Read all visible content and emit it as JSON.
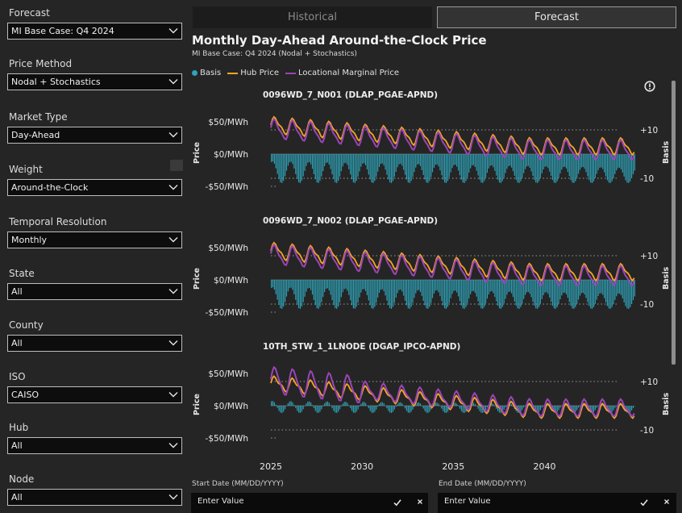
{
  "filters": [
    {
      "label": "Forecast",
      "value": "MI Base Case: Q4 2024"
    },
    {
      "label": "Price Method",
      "value": "Nodal + Stochastics"
    },
    {
      "label": "Market Type",
      "value": "Day-Ahead"
    },
    {
      "label": "Weight",
      "value": "Around-the-Clock"
    },
    {
      "label": "Temporal Resolution",
      "value": "Monthly"
    },
    {
      "label": "State",
      "value": "All"
    },
    {
      "label": "County",
      "value": "All"
    },
    {
      "label": "ISO",
      "value": "CAISO"
    },
    {
      "label": "Hub",
      "value": "All"
    },
    {
      "label": "Node",
      "value": "All"
    }
  ],
  "tabs": {
    "historical": "Historical",
    "forecast": "Forecast",
    "active": "forecast"
  },
  "chart": {
    "title": "Monthly Day-Ahead Around-the-Clock Price",
    "subtitle": "MI Base Case: Q4 2024 (Nodal + Stochastics)",
    "legend": {
      "basis": "Basis",
      "hub": "Hub Price",
      "lmp": "Locational Marginal Price"
    }
  },
  "colors": {
    "basis": "#2fa3b8",
    "hub": "#f5a623",
    "lmp": "#9b45b8"
  },
  "chart_data": {
    "type": "line",
    "left_axis": {
      "label": "Price",
      "ticks": [
        "$50/MWh",
        "$0/MWh",
        "-$50/MWh"
      ]
    },
    "right_axis": {
      "label": "Basis",
      "ticks": [
        "+10",
        "-10"
      ]
    },
    "x_ticks": [
      "2025",
      "2030",
      "2035",
      "2040"
    ],
    "x_range": [
      2025,
      2044
    ],
    "panels": [
      {
        "title": "0096WD_7_N001 (DLAP_PGAE-APND)",
        "hub_level": [
          45,
          12
        ],
        "lmp_offset": -6,
        "basis_range": [
          -12,
          -3
        ],
        "early_spike": false
      },
      {
        "title": "0096WD_7_N002 (DLAP_PGAE-APND)",
        "hub_level": [
          45,
          12
        ],
        "lmp_offset": -6,
        "basis_range": [
          -12,
          -3
        ],
        "early_spike": false
      },
      {
        "title": "10TH_STW_1_1LNODE (DGAP_IPCO-APND)",
        "hub_level": [
          35,
          -8
        ],
        "lmp_offset": 4,
        "basis_range": [
          -3,
          2
        ],
        "early_spike": true
      }
    ]
  },
  "date_filters": {
    "start_label": "Start Date (MM/DD/YYYY)",
    "end_label": "End Date (MM/DD/YYYY)",
    "placeholder": "Enter Value"
  }
}
